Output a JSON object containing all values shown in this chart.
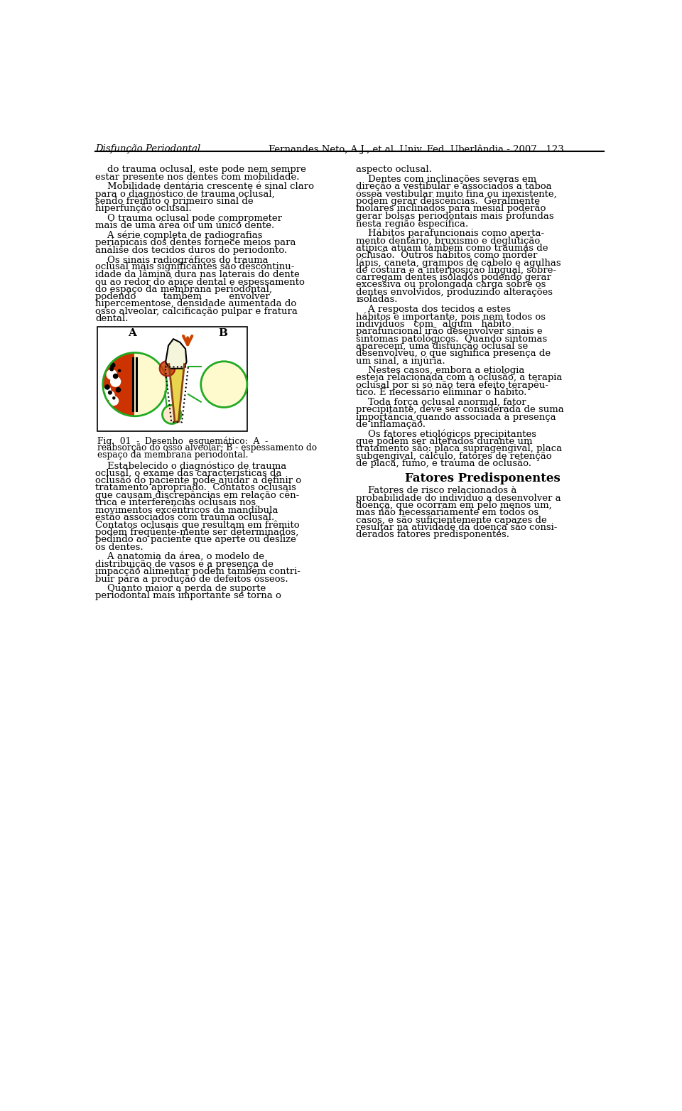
{
  "header_left": "Disfunção Periodontal",
  "header_right": "Fernandes Neto, A.J., et al. Univ. Fed. Uberlândia - 2007",
  "page_number": "123",
  "bg_color": "#ffffff",
  "text_color": "#000000",
  "header_line_color": "#000000",
  "font_size_body": 9.5,
  "fig_label_A": "A",
  "fig_label_B": "B",
  "fig_caption": "Fig.  01  -  Desenho  esquemático:  A  -\nreabsorção do osso alveolar; B - espessamento do\nespaço da membrana periodontal.",
  "section_title": "Fatores Predisponentes",
  "col1_texts": [
    "    do trauma oclusal, este pode nem sempre\nestar presente nos dentes com mobilidade.",
    "    Mobilidade dentária crescente é sinal claro\npara o diagnóstico de trauma oclusal,\nsendo frêmito o primeiro sinal de\nhiperfunção oclusal.",
    "    O trauma oclusal pode comprometer\nmais de uma área ou um único dente.",
    "    A série completa de radiografias\nperiapicais dos dentes fornece meios para\nanálise dos tecidos duros do periodonto.",
    "    Os sinais radiográficos do trauma\noclusal mais significantes são descontinu-\nidade da lâmina dura nas laterais do dente\nou ao redor do ápice dental e espessamento\ndo espaço da membrana periodontal,\npodendo         também         envolver\nhipercementose, densidade aumentada do\nosso alveolar, calcificação pulpar e fratura\ndental."
  ],
  "col1_texts2": [
    "    Estabelecido o diagnóstico de trauma\noclusal, o exame das características da\noclusão do paciente pode ajudar a definir o\ntratamento apropriado.  Contatos oclusais\nque causam discrepâncias em relação cên-\ntrica e interferências oclusais nos\nmovimentos excêntricos da mandíbula\nestão associados com trauma oclusal.\nContatos oclusais que resultam em frêmito\npodem freqüente-mente ser determinados,\npedindo ao paciente que aperte ou deslize\nos dentes.",
    "    A anatomia da área, o modelo de\ndistribuição de vasos e a presença de\nimpacção alimentar podem também contri-\nbuir para a produção de defeitos ósseos.",
    "    Quanto maior a perda de suporte\nperiodontal mais importante se torna o"
  ],
  "col2_texts": [
    "aspecto oclusal.",
    "    Dentes com inclinações severas em\ndireção a vestibular e associados a taboa\nóssea vestibular muito fina ou inexistente,\npodem gerar deiscências.  Geralmente\nmolares inclinados para mesial poderão\ngerar bolsas periodontais mais profundas\nnesta região específica.",
    "    Hábitos parafuncionais como aperta-\nmento dentário, bruxismo e deglutição\natípica atuam também como traumas de\noclusão.  Outros hábitos como morder\nlápis, caneta, grampos de cabelo e agulhas\nde costura e a interposição lingual, sobre-\ncarregam dentes isolados podendo gerar\nexcessiva ou prolongada carga sobre os\ndentes envolvidos, produzindo alterações\nisoladas.",
    "    A resposta dos tecidos a estes\nhábitos é importante, pois nem todos os\nindivíduos   com   algum   hábito\nparafuncional irão desenvolver sinais e\nsintomas patológicos.  Quando sintomas\naparecem, uma disfunção oclusal se\ndesenvolveu, o que significa presença de\num sinal, a injúria.",
    "    Nestes casos, embora a etiologia\nesteja relacionada com a oclusão, a terapia\noclusal por si só não terá efeito terapêu-\ntico. É necessário eliminar o hábito.",
    "    Toda força oclusal anormal, fator\nprecipitante, deve ser considerada de suma\nimportância quando associada à presença\nde inflamação.",
    "    Os fatores etiológicos precipitantes\nque podem ser alterados durante um\ntratamento são: placa supragengival, placa\nsubgengival, cálculo, fatores de retenção\nde placa, fumo, e trauma de oclusão."
  ],
  "col2_texts2": [
    "    Fatores de risco relacionados à\nprobabilidade do indivíduo a desenvolver a\ndoença, que ocorram em pelo menos um,\nmas não necessariamente em todos os\ncasos, e são suficientemente capazes de\nresultar na atividade da doença são consi-\nderados fatores predisponentes."
  ]
}
